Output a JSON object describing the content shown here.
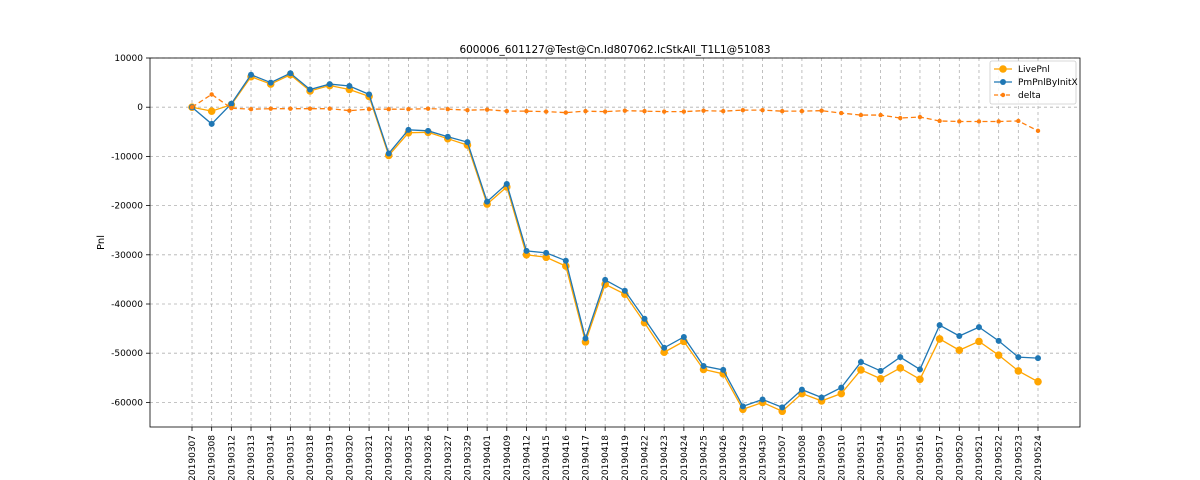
{
  "chart_data": {
    "type": "line",
    "title": "600006_601127@Test@Cn.Id807062.IcStkAll_T1L1@51083",
    "xlabel": "",
    "ylabel": "Pnl",
    "ylim": [
      -65000,
      10000
    ],
    "yticks": [
      10000,
      0,
      -10000,
      -20000,
      -30000,
      -40000,
      -50000,
      -60000
    ],
    "grid": true,
    "legend_position": "top-right",
    "x": [
      "20190307",
      "20190308",
      "20190312",
      "20190313",
      "20190314",
      "20190315",
      "20190318",
      "20190319",
      "20190320",
      "20190321",
      "20190322",
      "20190325",
      "20190326",
      "20190327",
      "20190329",
      "20190401",
      "20190409",
      "20190412",
      "20190415",
      "20190416",
      "20190417",
      "20190418",
      "20190419",
      "20190422",
      "20190423",
      "20190424",
      "20190425",
      "20190426",
      "20190429",
      "20190430",
      "20190507",
      "20190508",
      "20190509",
      "20190510",
      "20190513",
      "20190514",
      "20190515",
      "20190516",
      "20190517",
      "20190520",
      "20190521",
      "20190522",
      "20190523",
      "20190524"
    ],
    "series": [
      {
        "name": "LivePnl",
        "color": "#ffa500",
        "style": "solid",
        "marker": "large-circle",
        "values": [
          0,
          -800,
          500,
          6200,
          4700,
          6600,
          3300,
          4400,
          3600,
          2200,
          -9800,
          -5200,
          -5100,
          -6400,
          -7700,
          -19700,
          -16200,
          -30000,
          -30500,
          -32300,
          -47700,
          -36000,
          -38000,
          -43800,
          -49800,
          -47600,
          -53300,
          -54200,
          -61400,
          -60000,
          -61800,
          -58200,
          -59700,
          -58200,
          -53400,
          -55200,
          -53000,
          -55300,
          -47100,
          -49400,
          -47600,
          -50400,
          -53600,
          -55800
        ]
      },
      {
        "name": "PmPnlByInitX",
        "color": "#1f77b4",
        "style": "solid",
        "marker": "circle",
        "values": [
          0,
          -3400,
          700,
          6600,
          5000,
          6900,
          3600,
          4700,
          4300,
          2600,
          -9400,
          -4600,
          -4800,
          -6000,
          -7100,
          -19200,
          -15600,
          -29200,
          -29600,
          -31200,
          -47000,
          -35100,
          -37300,
          -43000,
          -48900,
          -46700,
          -52600,
          -53400,
          -60800,
          -59400,
          -61000,
          -57400,
          -59000,
          -57000,
          -51800,
          -53600,
          -50800,
          -53300,
          -44300,
          -46500,
          -44700,
          -47500,
          -50800,
          -51000
        ]
      },
      {
        "name": "delta",
        "color": "#ff7f0e",
        "style": "dashed",
        "marker": "small-circle",
        "values": [
          0,
          2600,
          -200,
          -400,
          -300,
          -300,
          -300,
          -300,
          -700,
          -400,
          -400,
          -400,
          -300,
          -400,
          -600,
          -500,
          -800,
          -800,
          -900,
          -1100,
          -800,
          -900,
          -700,
          -800,
          -900,
          -900,
          -700,
          -800,
          -600,
          -600,
          -800,
          -800,
          -700,
          -1200,
          -1600,
          -1600,
          -2200,
          -2000,
          -2800,
          -2900,
          -2900,
          -2900,
          -2800,
          -4800
        ]
      }
    ]
  }
}
